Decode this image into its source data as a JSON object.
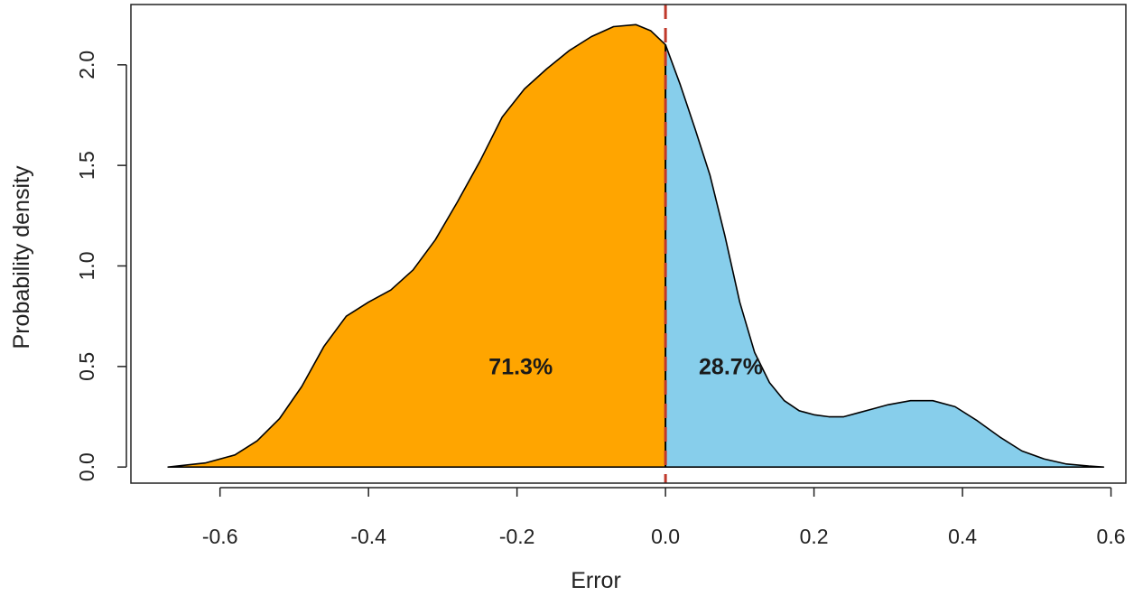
{
  "chart_data": {
    "type": "area",
    "title": "",
    "xlabel": "Error",
    "ylabel": "Probability density",
    "xlim": [
      -0.72,
      0.62
    ],
    "ylim": [
      -0.08,
      2.3
    ],
    "x_ticks": [
      "-0.6",
      "-0.4",
      "-0.2",
      "0.0",
      "0.2",
      "0.4",
      "0.6"
    ],
    "y_ticks": [
      "0.0",
      "0.5",
      "1.0",
      "1.5",
      "2.0"
    ],
    "grid": false,
    "split_at": 0.0,
    "split_line_color": "#c0392b",
    "colors": {
      "negative": "#FFA500",
      "positive": "#87CEEB",
      "curve": "#000000"
    },
    "annotations": [
      {
        "text": "71.3%",
        "x": -0.195,
        "y": 0.46
      },
      {
        "text": "28.7%",
        "x": 0.088,
        "y": 0.46
      }
    ],
    "density": {
      "x": [
        -0.67,
        -0.62,
        -0.58,
        -0.55,
        -0.52,
        -0.49,
        -0.46,
        -0.43,
        -0.4,
        -0.37,
        -0.34,
        -0.31,
        -0.28,
        -0.25,
        -0.22,
        -0.19,
        -0.16,
        -0.13,
        -0.1,
        -0.07,
        -0.04,
        -0.02,
        0.0,
        0.02,
        0.04,
        0.06,
        0.08,
        0.1,
        0.12,
        0.14,
        0.16,
        0.18,
        0.2,
        0.22,
        0.24,
        0.26,
        0.28,
        0.3,
        0.33,
        0.36,
        0.39,
        0.42,
        0.45,
        0.48,
        0.51,
        0.54,
        0.57,
        0.59
      ],
      "y": [
        0.0,
        0.02,
        0.06,
        0.13,
        0.24,
        0.4,
        0.6,
        0.75,
        0.82,
        0.88,
        0.98,
        1.13,
        1.32,
        1.52,
        1.74,
        1.88,
        1.98,
        2.07,
        2.14,
        2.19,
        2.2,
        2.17,
        2.1,
        1.9,
        1.68,
        1.45,
        1.15,
        0.82,
        0.57,
        0.42,
        0.33,
        0.28,
        0.26,
        0.25,
        0.25,
        0.27,
        0.29,
        0.31,
        0.33,
        0.33,
        0.3,
        0.23,
        0.15,
        0.08,
        0.04,
        0.015,
        0.005,
        0.0
      ]
    }
  }
}
